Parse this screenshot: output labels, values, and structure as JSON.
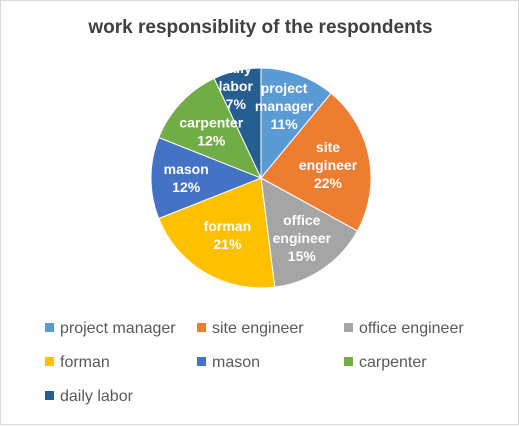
{
  "chart_data": {
    "type": "pie",
    "title": "work responsiblity of the respondents",
    "categories": [
      "project manager",
      "site engineer",
      "office engineer",
      "forman",
      "mason",
      "carpenter",
      "daily labor"
    ],
    "values": [
      11,
      22,
      15,
      21,
      12,
      12,
      7
    ],
    "value_labels": [
      "11%",
      "22%",
      "15%",
      "21%",
      "12%",
      "12%",
      "7%"
    ],
    "colors": [
      "#5b9bd5",
      "#ed7d31",
      "#a5a5a5",
      "#ffc000",
      "#4472c4",
      "#70ad47",
      "#255e91"
    ],
    "legend_position": "bottom"
  }
}
